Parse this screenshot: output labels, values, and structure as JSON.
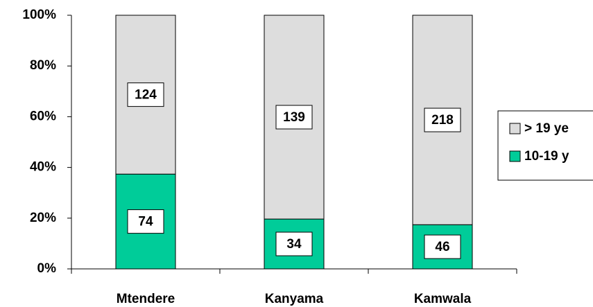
{
  "chart_data": {
    "type": "bar",
    "stacking": "percent",
    "categories": [
      "Mtendere",
      "Kanyama",
      "Kamwala"
    ],
    "series": [
      {
        "name": "10-19 y",
        "color": "#00cc99",
        "values": [
          74,
          34,
          46
        ]
      },
      {
        "name": "> 19 ye",
        "color": "#dddddd",
        "values": [
          124,
          139,
          218
        ]
      }
    ],
    "ylim": [
      0,
      100
    ],
    "yticks": [
      {
        "value": 0,
        "label": "0%"
      },
      {
        "value": 20,
        "label": "20%"
      },
      {
        "value": 40,
        "label": "40%"
      },
      {
        "value": 60,
        "label": "60%"
      },
      {
        "value": 80,
        "label": "80%"
      },
      {
        "value": 100,
        "label": "100%"
      }
    ],
    "legend": "right"
  }
}
